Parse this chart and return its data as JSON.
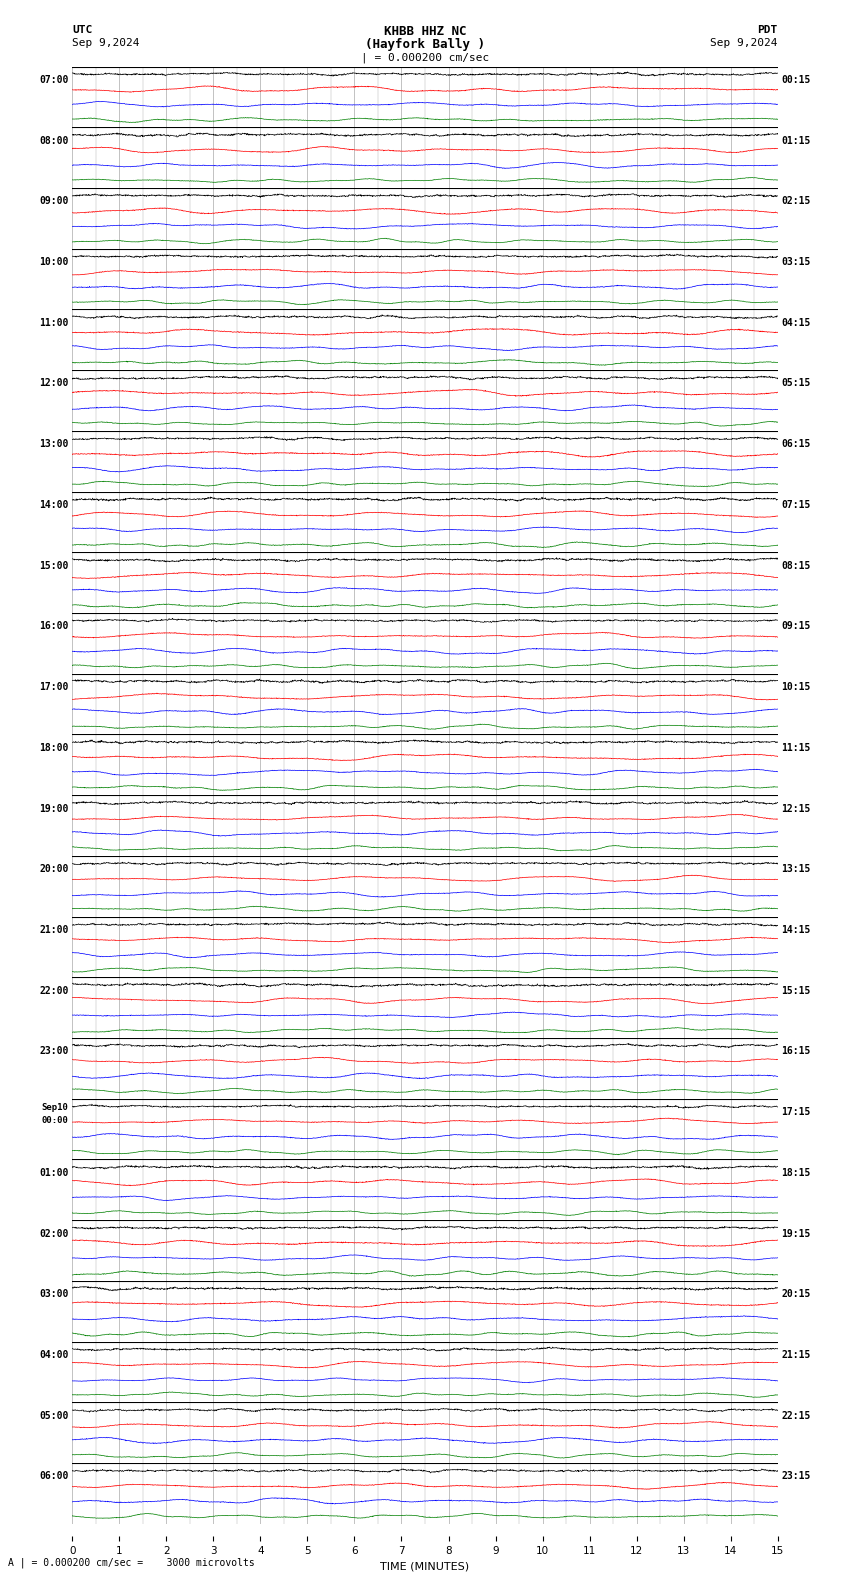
{
  "title_line1": "KHBB HHZ NC",
  "title_line2": "(Hayfork Bally )",
  "scale_text": "= 0.000200 cm/sec",
  "utc_label": "UTC",
  "utc_date": "Sep 9,2024",
  "pdt_label": "PDT",
  "pdt_date": "Sep 9,2024",
  "footer_text": "= 0.000200 cm/sec =    3000 microvolts",
  "xlabel": "TIME (MINUTES)",
  "bg_color": "#ffffff",
  "grid_color": "#aaaaaa",
  "sep_line_color": "#000000",
  "trace_colors": [
    "#000000",
    "#ff0000",
    "#0000ff",
    "#008000"
  ],
  "row_labels_left": [
    "07:00",
    "08:00",
    "09:00",
    "10:00",
    "11:00",
    "12:00",
    "13:00",
    "14:00",
    "15:00",
    "16:00",
    "17:00",
    "18:00",
    "19:00",
    "20:00",
    "21:00",
    "22:00",
    "23:00",
    "Sep10\n00:00",
    "01:00",
    "02:00",
    "03:00",
    "04:00",
    "05:00",
    "06:00"
  ],
  "row_labels_right": [
    "00:15",
    "01:15",
    "02:15",
    "03:15",
    "04:15",
    "05:15",
    "06:15",
    "07:15",
    "08:15",
    "09:15",
    "10:15",
    "11:15",
    "12:15",
    "13:15",
    "14:15",
    "15:15",
    "16:15",
    "17:15",
    "18:15",
    "19:15",
    "20:15",
    "21:15",
    "22:15",
    "23:15"
  ],
  "n_rows": 24,
  "n_traces": 4,
  "minutes": 15,
  "samples_per_row": 1800,
  "fig_width": 8.5,
  "fig_height": 15.84
}
